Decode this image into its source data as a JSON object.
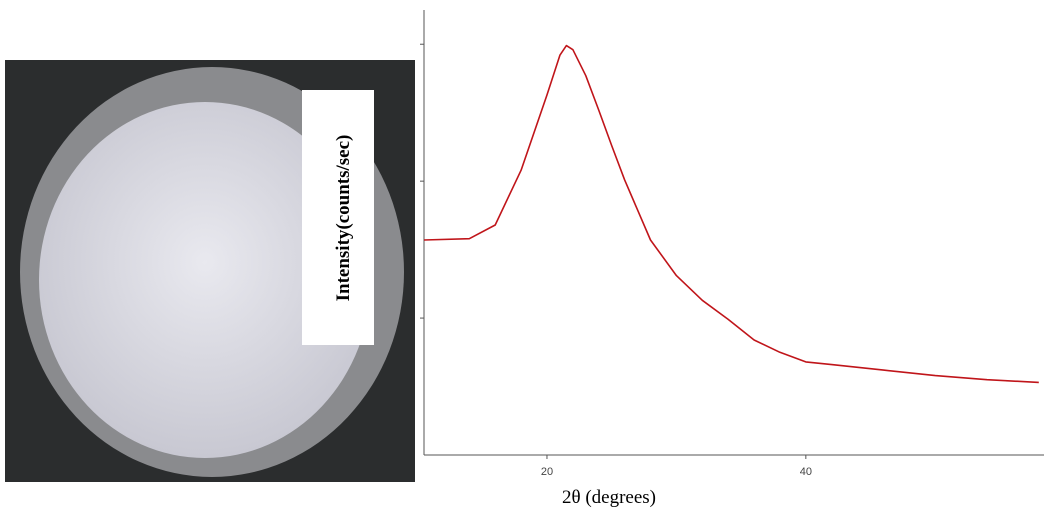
{
  "chart_data": {
    "type": "line",
    "y_label": "Intensity(counts/sec)",
    "x_label": "2θ (degrees)",
    "x": [
      10.5,
      14,
      16,
      18,
      20,
      21,
      21.5,
      22,
      23,
      24,
      25,
      26,
      28,
      30,
      32,
      34,
      36,
      38,
      40,
      42,
      46,
      50,
      54,
      58
    ],
    "series": [
      {
        "color": "#c0151a",
        "values": [
          1.57,
          1.58,
          1.68,
          2.08,
          2.63,
          2.92,
          2.99,
          2.96,
          2.77,
          2.52,
          2.26,
          2.01,
          1.57,
          1.31,
          1.13,
          0.99,
          0.84,
          0.75,
          0.68,
          0.66,
          0.62,
          0.58,
          0.55,
          0.53
        ]
      }
    ],
    "xlim": [
      10.5,
      58.4
    ],
    "xticks": [
      20,
      40
    ],
    "ylim": [
      0,
      3.25
    ],
    "yticks": [
      1,
      2,
      3
    ]
  }
}
